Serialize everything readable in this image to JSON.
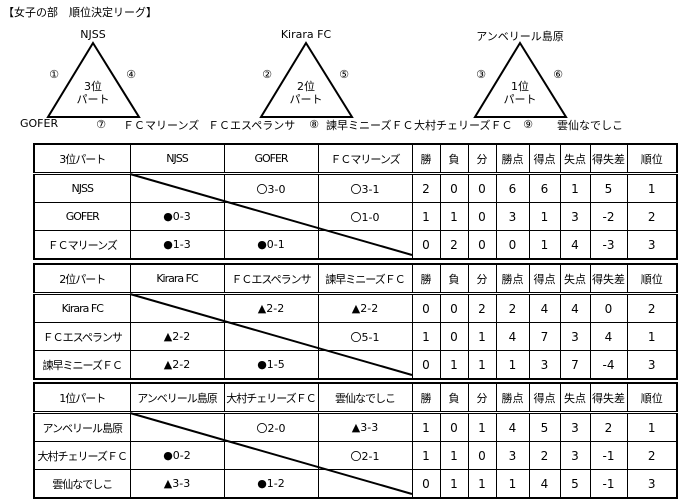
{
  "title": "【女子の部　順位決定リーグ】",
  "groups": [
    {
      "part": "3位パート",
      "center": [
        "3位",
        "パート"
      ],
      "teams": [
        "NJSS",
        "GOFER",
        "ＦＣマリーンズ"
      ],
      "match_numbers": [
        "①",
        "④",
        "⑦"
      ],
      "rows": [
        {
          "team": "NJSS",
          "results": [
            "",
            "〇3-0",
            "〇3-1"
          ],
          "stats": [
            "2",
            "0",
            "0",
            "6",
            "6",
            "1",
            "5",
            "1"
          ]
        },
        {
          "team": "GOFER",
          "results": [
            "●0-3",
            "",
            "〇1-0"
          ],
          "stats": [
            "1",
            "1",
            "0",
            "3",
            "1",
            "3",
            "-2",
            "2"
          ]
        },
        {
          "team": "ＦＣマリーンズ",
          "results": [
            "●1-3",
            "●0-1",
            ""
          ],
          "stats": [
            "0",
            "2",
            "0",
            "0",
            "1",
            "4",
            "-3",
            "3"
          ]
        }
      ]
    },
    {
      "part": "2位パート",
      "center": [
        "2位",
        "パート"
      ],
      "teams": [
        "Kirara FC",
        "ＦＣエスペランサ",
        "諫早ミニーズＦＣ"
      ],
      "match_numbers": [
        "②",
        "⑤",
        "⑧"
      ],
      "rows": [
        {
          "team": "Kirara FC",
          "results": [
            "",
            "▲2-2",
            "▲2-2"
          ],
          "stats": [
            "0",
            "0",
            "2",
            "2",
            "4",
            "4",
            "0",
            "2"
          ]
        },
        {
          "team": "ＦＣエスペランサ",
          "results": [
            "▲2-2",
            "",
            "〇5-1"
          ],
          "stats": [
            "1",
            "0",
            "1",
            "4",
            "7",
            "3",
            "4",
            "1"
          ]
        },
        {
          "team": "諫早ミニーズＦＣ",
          "results": [
            "▲2-2",
            "●1-5",
            ""
          ],
          "stats": [
            "0",
            "1",
            "1",
            "1",
            "3",
            "7",
            "-4",
            "3"
          ]
        }
      ]
    },
    {
      "part": "1位パート",
      "center": [
        "1位",
        "パート"
      ],
      "teams": [
        "アンベリール島原",
        "大村チェリーズＦＣ",
        "雲仙なでしこ"
      ],
      "match_numbers": [
        "③",
        "⑥",
        "⑨"
      ],
      "rows": [
        {
          "team": "アンベリール島原",
          "results": [
            "",
            "〇2-0",
            "▲3-3"
          ],
          "stats": [
            "1",
            "0",
            "1",
            "4",
            "5",
            "3",
            "2",
            "1"
          ]
        },
        {
          "team": "大村チェリーズＦＣ",
          "results": [
            "●0-2",
            "",
            "〇2-1"
          ],
          "stats": [
            "1",
            "1",
            "0",
            "3",
            "2",
            "3",
            "-1",
            "2"
          ]
        },
        {
          "team": "雲仙なでしこ",
          "results": [
            "▲3-3",
            "●1-2",
            ""
          ],
          "stats": [
            "0",
            "1",
            "1",
            "1",
            "4",
            "5",
            "-1",
            "3"
          ]
        }
      ]
    }
  ],
  "stat_headers": [
    "勝",
    "負",
    "分",
    "勝点",
    "得点",
    "失点",
    "得失差",
    "順位"
  ]
}
